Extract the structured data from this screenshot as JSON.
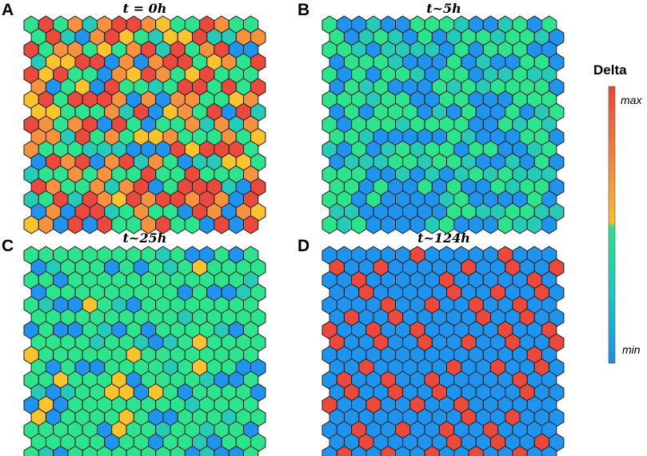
{
  "panels": [
    {
      "letter": "A",
      "title": "t = 0h",
      "pattern": "random_mixed"
    },
    {
      "letter": "B",
      "title": "t~5h",
      "pattern": "mostly_low"
    },
    {
      "letter": "C",
      "title": "t~25h",
      "pattern": "mid_with_yellow"
    },
    {
      "letter": "D",
      "title": "t~124h",
      "pattern": "lateral_inhibition"
    }
  ],
  "grid": {
    "cols": 16,
    "rows": 17
  },
  "colorbar": {
    "title": "Delta",
    "max_label": "max",
    "min_label": "min",
    "stops": [
      "#e8463c",
      "#f59a3c",
      "#f5c02a",
      "#2be08a",
      "#1fc6c0",
      "#1f8cea"
    ]
  },
  "colors": {
    "red": "#ea4a3e",
    "orange": "#f5923f",
    "yellow": "#f9c22f",
    "green": "#2ee38d",
    "teal": "#27cab7",
    "blue": "#2094ec"
  }
}
